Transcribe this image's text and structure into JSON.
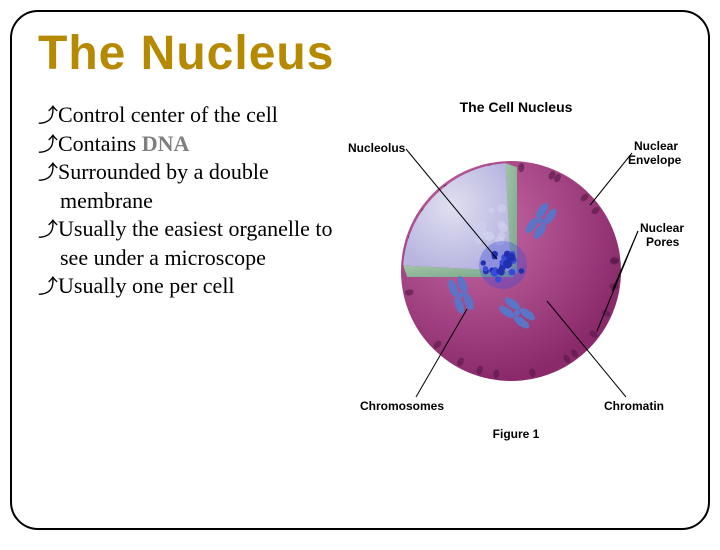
{
  "title": {
    "text": "The Nucleus",
    "color": "#b58900"
  },
  "bullets": {
    "b1": "Control center of the cell",
    "b2_prefix": "Contains ",
    "b2_dna": "DNA",
    "b3": "Surrounded by a double membrane",
    "b4": "Usually the easiest organelle to see under a microscope",
    "b5": "Usually one per cell",
    "glyph": "⤴"
  },
  "figure": {
    "title": "The Cell Nucleus",
    "caption": "Figure 1",
    "labels": {
      "nucleolus": "Nucleolus",
      "envelope_l1": "Nuclear",
      "envelope_l2": "Envelope",
      "pores_l1": "Nuclear",
      "pores_l2": "Pores",
      "chromosomes": "Chromosomes",
      "chromatin": "Chromatin"
    },
    "colors": {
      "envelope_outer": "#8a2a6a",
      "envelope_inner": "#c86aa8",
      "cut_surface1": "#7aa88a",
      "cut_surface2": "#a0c4a8",
      "interior_light": "#e0dff0",
      "interior_mid": "#b8b6e0",
      "nucleolus": "#3a4ad8",
      "nucleolus_dark": "#2030b0",
      "chromosome": "#5a74c8",
      "chromatin": "#cfd0ef",
      "pore": "#5a1a48",
      "pointer": "#000000"
    }
  }
}
